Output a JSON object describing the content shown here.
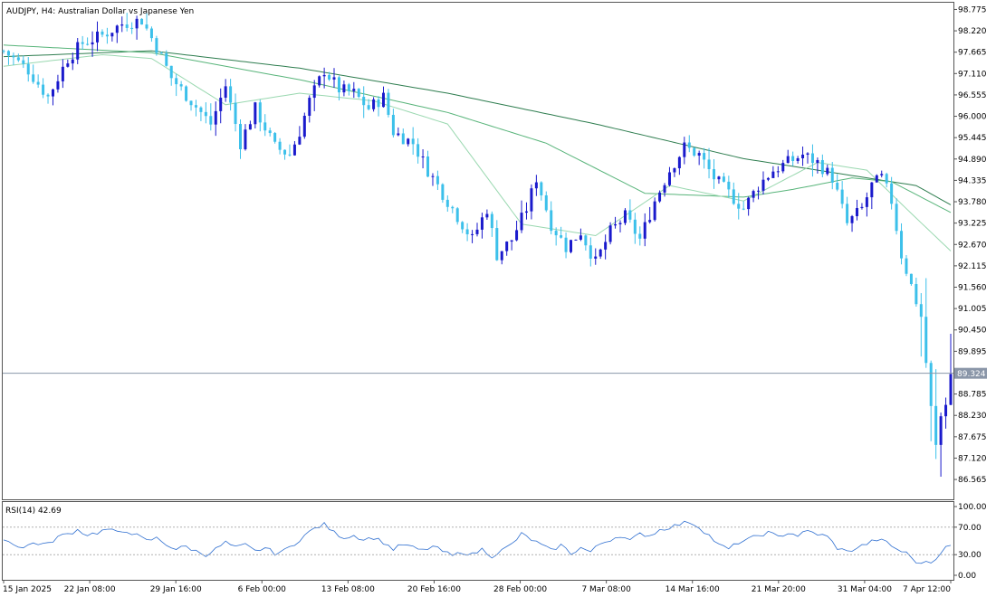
{
  "chart_data": [
    {
      "type": "candlestick",
      "title": "AUDJPY, H4:  Australian Dollar vs Japanese Yen",
      "symbol": "AUDJPY",
      "timeframe": "H4",
      "ylim": [
        86.05,
        98.95
      ],
      "yticks": [
        "98.775",
        "98.220",
        "97.665",
        "97.110",
        "96.555",
        "96.000",
        "95.445",
        "94.890",
        "94.335",
        "93.780",
        "93.225",
        "92.670",
        "92.115",
        "91.560",
        "91.005",
        "90.450",
        "89.895",
        "89.324",
        "88.785",
        "88.230",
        "87.675",
        "87.120",
        "86.565"
      ],
      "current_price": 89.324,
      "current_price_label": "89.324",
      "bull_color": "#1a1acc",
      "bear_color": "#3cc0ea",
      "grid": false,
      "price_path": [
        [
          0,
          97.7
        ],
        [
          5,
          97.2
        ],
        [
          9,
          96.5
        ],
        [
          13,
          97.5
        ],
        [
          16,
          97.9
        ],
        [
          20,
          98.1
        ],
        [
          24,
          98.4
        ],
        [
          28,
          98.5
        ],
        [
          31,
          97.8
        ],
        [
          34,
          97.0
        ],
        [
          38,
          96.4
        ],
        [
          42,
          95.8
        ],
        [
          45,
          96.8
        ],
        [
          48,
          95.3
        ],
        [
          51,
          96.2
        ],
        [
          55,
          95.2
        ],
        [
          58,
          95.0
        ],
        [
          60,
          95.6
        ],
        [
          62,
          96.4
        ],
        [
          65,
          97.2
        ],
        [
          68,
          96.7
        ],
        [
          71,
          96.6
        ],
        [
          74,
          96.2
        ],
        [
          77,
          96.5
        ],
        [
          79,
          95.6
        ],
        [
          83,
          95.3
        ],
        [
          86,
          94.6
        ],
        [
          89,
          94.0
        ],
        [
          92,
          93.4
        ],
        [
          95,
          92.8
        ],
        [
          98,
          93.6
        ],
        [
          100,
          92.4
        ],
        [
          103,
          92.8
        ],
        [
          106,
          93.6
        ],
        [
          108,
          94.4
        ],
        [
          111,
          93.2
        ],
        [
          114,
          92.6
        ],
        [
          117,
          93.0
        ],
        [
          120,
          92.2
        ],
        [
          123,
          93.0
        ],
        [
          126,
          93.4
        ],
        [
          129,
          92.8
        ],
        [
          132,
          93.8
        ],
        [
          135,
          94.6
        ],
        [
          138,
          95.2
        ],
        [
          141,
          95.0
        ],
        [
          144,
          94.4
        ],
        [
          147,
          94.0
        ],
        [
          150,
          93.6
        ],
        [
          153,
          94.2
        ],
        [
          156,
          94.6
        ],
        [
          159,
          94.8
        ],
        [
          162,
          95.0
        ],
        [
          165,
          94.8
        ],
        [
          168,
          94.4
        ],
        [
          171,
          93.2
        ],
        [
          174,
          93.6
        ],
        [
          176,
          94.2
        ],
        [
          178,
          94.4
        ],
        [
          180,
          93.8
        ],
        [
          182,
          92.4
        ],
        [
          184,
          91.6
        ],
        [
          186,
          90.8
        ],
        [
          188,
          88.4
        ],
        [
          189,
          87.4
        ],
        [
          190,
          88.2
        ],
        [
          191,
          88.6
        ],
        [
          192,
          89.3
        ]
      ],
      "ma_slow": [
        [
          0,
          97.55
        ],
        [
          30,
          97.7
        ],
        [
          60,
          97.25
        ],
        [
          90,
          96.6
        ],
        [
          120,
          95.8
        ],
        [
          150,
          94.9
        ],
        [
          170,
          94.5
        ],
        [
          185,
          94.2
        ],
        [
          192,
          93.7
        ]
      ],
      "ma_mid": [
        [
          0,
          97.85
        ],
        [
          30,
          97.65
        ],
        [
          60,
          96.95
        ],
        [
          90,
          96.1
        ],
        [
          110,
          95.3
        ],
        [
          130,
          94.0
        ],
        [
          150,
          93.9
        ],
        [
          160,
          94.1
        ],
        [
          172,
          94.4
        ],
        [
          180,
          94.3
        ],
        [
          192,
          93.5
        ]
      ],
      "ma_fast": [
        [
          0,
          97.3
        ],
        [
          20,
          97.6
        ],
        [
          30,
          97.5
        ],
        [
          45,
          96.3
        ],
        [
          60,
          96.6
        ],
        [
          75,
          96.4
        ],
        [
          90,
          95.8
        ],
        [
          105,
          93.2
        ],
        [
          120,
          92.9
        ],
        [
          135,
          94.2
        ],
        [
          150,
          93.8
        ],
        [
          165,
          94.8
        ],
        [
          175,
          94.6
        ],
        [
          183,
          93.6
        ],
        [
          192,
          92.5
        ]
      ],
      "ma_colors": [
        "#2e7d4f",
        "#58b47a",
        "#9ad8b0"
      ]
    },
    {
      "type": "line",
      "title": "RSI(14) 42.69",
      "ylim": [
        0,
        100
      ],
      "yticks": [
        "100.00",
        "70.00",
        "30.00",
        "0.00"
      ],
      "levels": [
        70,
        30
      ],
      "series_color": "#2f6fd0",
      "points": [
        [
          0,
          52
        ],
        [
          2,
          46
        ],
        [
          4,
          40
        ],
        [
          6,
          47
        ],
        [
          9,
          45
        ],
        [
          11,
          56
        ],
        [
          13,
          60
        ],
        [
          15,
          66
        ],
        [
          17,
          59
        ],
        [
          19,
          62
        ],
        [
          21,
          67
        ],
        [
          23,
          62
        ],
        [
          25,
          65
        ],
        [
          27,
          58
        ],
        [
          29,
          50
        ],
        [
          31,
          54
        ],
        [
          33,
          45
        ],
        [
          35,
          38
        ],
        [
          37,
          42
        ],
        [
          39,
          35
        ],
        [
          41,
          30
        ],
        [
          43,
          38
        ],
        [
          45,
          48
        ],
        [
          47,
          40
        ],
        [
          49,
          44
        ],
        [
          51,
          35
        ],
        [
          53,
          40
        ],
        [
          55,
          32
        ],
        [
          57,
          36
        ],
        [
          59,
          46
        ],
        [
          61,
          58
        ],
        [
          63,
          68
        ],
        [
          65,
          74
        ],
        [
          67,
          62
        ],
        [
          69,
          55
        ],
        [
          71,
          58
        ],
        [
          73,
          52
        ],
        [
          75,
          55
        ],
        [
          77,
          48
        ],
        [
          79,
          38
        ],
        [
          81,
          45
        ],
        [
          83,
          40
        ],
        [
          85,
          36
        ],
        [
          87,
          42
        ],
        [
          89,
          35
        ],
        [
          91,
          28
        ],
        [
          93,
          34
        ],
        [
          95,
          30
        ],
        [
          97,
          38
        ],
        [
          99,
          28
        ],
        [
          101,
          36
        ],
        [
          103,
          45
        ],
        [
          105,
          60
        ],
        [
          107,
          52
        ],
        [
          109,
          44
        ],
        [
          111,
          36
        ],
        [
          113,
          44
        ],
        [
          115,
          32
        ],
        [
          117,
          40
        ],
        [
          119,
          34
        ],
        [
          121,
          46
        ],
        [
          123,
          52
        ],
        [
          125,
          58
        ],
        [
          127,
          50
        ],
        [
          129,
          60
        ],
        [
          131,
          58
        ],
        [
          133,
          66
        ],
        [
          135,
          70
        ],
        [
          137,
          74
        ],
        [
          139,
          78
        ],
        [
          141,
          70
        ],
        [
          143,
          58
        ],
        [
          145,
          44
        ],
        [
          147,
          38
        ],
        [
          149,
          48
        ],
        [
          151,
          52
        ],
        [
          153,
          58
        ],
        [
          155,
          62
        ],
        [
          157,
          56
        ],
        [
          159,
          62
        ],
        [
          161,
          58
        ],
        [
          163,
          64
        ],
        [
          165,
          60
        ],
        [
          167,
          56
        ],
        [
          169,
          40
        ],
        [
          171,
          34
        ],
        [
          173,
          40
        ],
        [
          175,
          46
        ],
        [
          177,
          52
        ],
        [
          179,
          48
        ],
        [
          181,
          38
        ],
        [
          183,
          32
        ],
        [
          185,
          20
        ],
        [
          186,
          15
        ],
        [
          187,
          22
        ],
        [
          188,
          18
        ],
        [
          189,
          26
        ],
        [
          190,
          34
        ],
        [
          191,
          40
        ],
        [
          192,
          43
        ]
      ],
      "xlabels": [
        "15 Jan 2025",
        "22 Jan 08:00",
        "29 Jan 16:00",
        "6 Feb 00:00",
        "13 Feb 08:00",
        "20 Feb 16:00",
        "28 Feb 00:00",
        "7 Mar 08:00",
        "14 Mar 16:00",
        "21 Mar 20:00",
        "31 Mar 04:00",
        "7 Apr 12:00"
      ]
    }
  ]
}
